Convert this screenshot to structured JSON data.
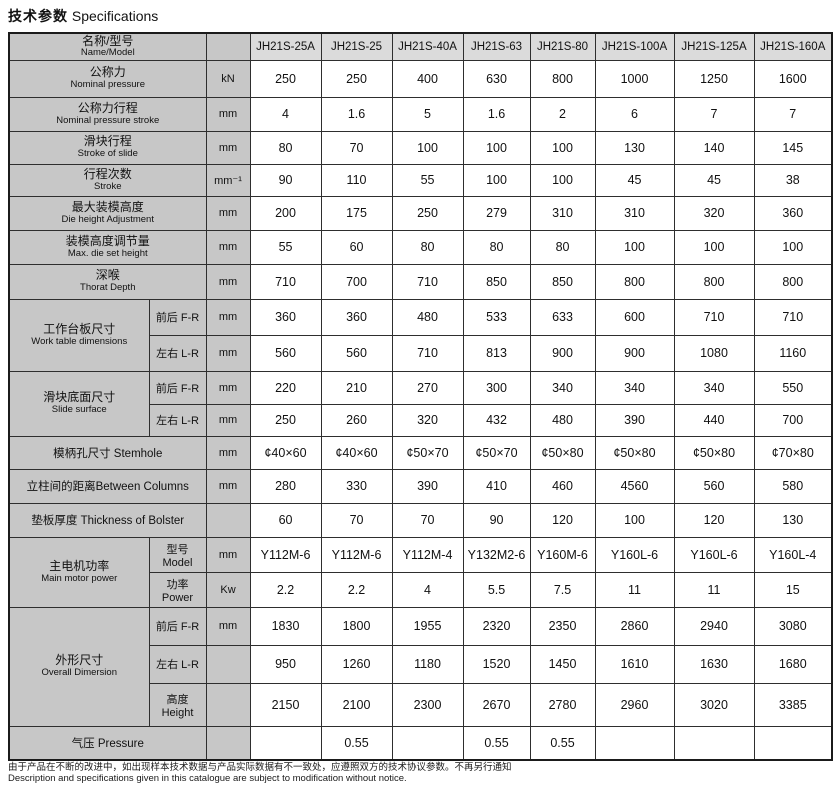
{
  "title": {
    "zh": "技术参数",
    "en": "Specifications"
  },
  "colors": {
    "label_bg": "#c7c7c7",
    "model_header_bg": "#dbdbdb",
    "cell_bg": "#ffffff",
    "border": "#2e2e2e"
  },
  "table": {
    "header": {
      "label_zh": "名称/型号",
      "label_en": "Name/Model",
      "unit_label": ""
    },
    "models": [
      "JH21S-25A",
      "JH21S-25",
      "JH21S-40A",
      "JH21S-63",
      "JH21S-80",
      "JH21S-100A",
      "JH21S-125A",
      "JH21S-160A"
    ],
    "rows": [
      {
        "label_zh": "公称力",
        "label_en": "Nominal pressure",
        "unit": "kN",
        "values": [
          "250",
          "250",
          "400",
          "630",
          "800",
          "1000",
          "1250",
          "1600"
        ]
      },
      {
        "label_zh": "公称力行程",
        "label_en": "Nominal pressure stroke",
        "unit": "mm",
        "values": [
          "4",
          "1.6",
          "5",
          "1.6",
          "2",
          "6",
          "7",
          "7"
        ]
      },
      {
        "label_zh": "滑块行程",
        "label_en": "Stroke of slide",
        "unit": "mm",
        "values": [
          "80",
          "70",
          "100",
          "100",
          "100",
          "130",
          "140",
          "145"
        ]
      },
      {
        "label_zh": "行程次数",
        "label_en": "Stroke",
        "unit": "mm⁻¹",
        "values": [
          "90",
          "110",
          "55",
          "100",
          "100",
          "45",
          "45",
          "38"
        ]
      },
      {
        "label_zh": "最大装模高度",
        "label_en": "Die height Adjustment",
        "unit": "mm",
        "values": [
          "200",
          "175",
          "250",
          "279",
          "310",
          "310",
          "320",
          "360"
        ]
      },
      {
        "label_zh": "装模高度调节量",
        "label_en": "Max. die set height",
        "unit": "mm",
        "values": [
          "55",
          "60",
          "80",
          "80",
          "80",
          "100",
          "100",
          "100"
        ]
      },
      {
        "label_zh": "深喉",
        "label_en": "Thorat Depth",
        "unit": "mm",
        "values": [
          "710",
          "700",
          "710",
          "850",
          "850",
          "800",
          "800",
          "800"
        ]
      },
      {
        "label_zh": "工作台板尺寸",
        "label_en": "Work table dimensions",
        "sub": [
          {
            "label": "前后 F-R",
            "unit": "mm",
            "values": [
              "360",
              "360",
              "480",
              "533",
              "633",
              "600",
              "710",
              "710"
            ]
          },
          {
            "label": "左右 L-R",
            "unit": "mm",
            "values": [
              "560",
              "560",
              "710",
              "813",
              "900",
              "900",
              "1080",
              "1160"
            ]
          }
        ]
      },
      {
        "label_zh": "滑块底面尺寸",
        "label_en": "Slide surface",
        "sub": [
          {
            "label": "前后 F-R",
            "unit": "mm",
            "values": [
              "220",
              "210",
              "270",
              "300",
              "340",
              "340",
              "340",
              "550"
            ]
          },
          {
            "label": "左右 L-R",
            "unit": "mm",
            "values": [
              "250",
              "260",
              "320",
              "432",
              "480",
              "390",
              "440",
              "700"
            ]
          }
        ]
      },
      {
        "label": "模柄孔尺寸 Stemhole",
        "unit": "mm",
        "values": [
          "¢40×60",
          "¢40×60",
          "¢50×70",
          "¢50×70",
          "¢50×80",
          "¢50×80",
          "¢50×80",
          "¢70×80"
        ]
      },
      {
        "label": "立柱间的距离Between Columns",
        "unit": "mm",
        "values": [
          "280",
          "330",
          "390",
          "410",
          "460",
          "4560",
          "560",
          "580"
        ]
      },
      {
        "label": "垫板厚度 Thickness of Bolster",
        "unit": "",
        "values": [
          "60",
          "70",
          "70",
          "90",
          "120",
          "100",
          "120",
          "130"
        ]
      },
      {
        "label_zh": "主电机功率",
        "label_en": "Main motor power",
        "sub": [
          {
            "label": "型号 Model",
            "unit": "mm",
            "values": [
              "Y112M-6",
              "Y112M-6",
              "Y112M-4",
              "Y132M2-6",
              "Y160M-6",
              "Y160L-6",
              "Y160L-6",
              "Y160L-4"
            ]
          },
          {
            "label": "功率 Power",
            "unit": "Kw",
            "values": [
              "2.2",
              "2.2",
              "4",
              "5.5",
              "7.5",
              "11",
              "11",
              "15"
            ]
          }
        ]
      },
      {
        "label_zh": "外形尺寸",
        "label_en": "Overall Dimersion",
        "sub": [
          {
            "label": "前后 F-R",
            "unit": "mm",
            "values": [
              "1830",
              "1800",
              "1955",
              "2320",
              "2350",
              "2860",
              "2940",
              "3080"
            ]
          },
          {
            "label": "左右 L-R",
            "unit": "",
            "values": [
              "950",
              "1260",
              "1180",
              "1520",
              "1450",
              "1610",
              "1630",
              "1680"
            ]
          },
          {
            "label": "高度 Height",
            "unit": "",
            "values": [
              "2150",
              "2100",
              "2300",
              "2670",
              "2780",
              "2960",
              "3020",
              "3385"
            ]
          }
        ]
      },
      {
        "label": "气压  Pressure",
        "unit": "",
        "values": [
          "",
          "0.55",
          "",
          "0.55",
          "0.55",
          "",
          "",
          ""
        ]
      }
    ]
  },
  "footer": {
    "zh": "由于产品在不断的改进中，如出现样本技术数据与产品实际数据有不一致处，应遵照双方的技术协议参数。不再另行通知",
    "en": "Description and specifications given in this catalogue are subject to modification without notice."
  }
}
